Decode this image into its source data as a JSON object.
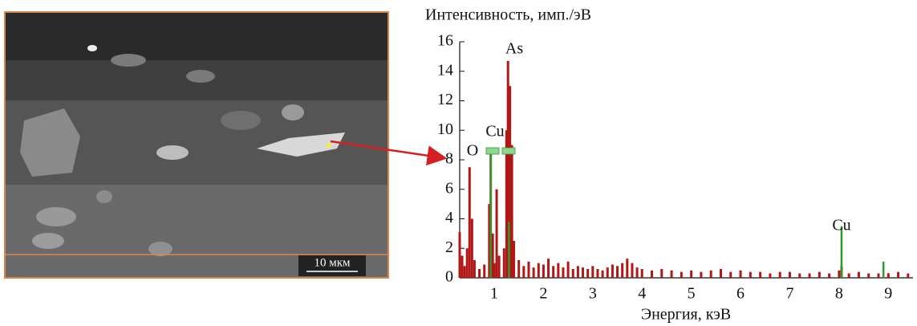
{
  "image": {
    "scale_bar": "10 мкм"
  },
  "chart_data": {
    "type": "stick",
    "y_label": "Интенсивность, имп./эВ",
    "x_label": "Энергия, кэВ",
    "xlim": [
      0.3,
      9.5
    ],
    "xticks": [
      1,
      2,
      3,
      4,
      5,
      6,
      7,
      8,
      9
    ],
    "ylim": [
      0,
      16
    ],
    "yticks": [
      0,
      2,
      4,
      6,
      8,
      10,
      12,
      14,
      16
    ],
    "annotations": [
      "O",
      "Cu",
      "As",
      "Cu"
    ],
    "series": [
      {
        "color": "#b01818",
        "x": [
          0.3,
          0.35,
          0.4,
          0.45,
          0.5,
          0.55,
          0.6,
          0.7,
          0.8,
          0.9,
          0.93,
          0.97,
          1.0,
          1.05,
          1.1,
          1.2,
          1.25,
          1.28,
          1.32,
          1.36,
          1.4,
          1.5,
          1.6,
          1.7,
          1.8,
          1.9,
          2.0,
          2.1,
          2.2,
          2.3,
          2.4,
          2.5,
          2.6,
          2.7,
          2.8,
          2.9,
          3.0,
          3.1,
          3.2,
          3.3,
          3.4,
          3.5,
          3.6,
          3.7,
          3.8,
          3.9,
          4.0,
          4.2,
          4.4,
          4.6,
          4.8,
          5.0,
          5.2,
          5.4,
          5.6,
          5.8,
          6.0,
          6.2,
          6.4,
          6.6,
          6.8,
          7.0,
          7.2,
          7.4,
          7.6,
          7.8,
          8.0,
          8.05,
          8.2,
          8.4,
          8.6,
          8.8,
          9.0,
          9.2,
          9.4
        ],
        "values": [
          3.1,
          1.5,
          0.8,
          2.0,
          7.5,
          4.0,
          1.2,
          0.6,
          0.9,
          5.0,
          8.7,
          3.0,
          1.0,
          6.0,
          1.5,
          2.0,
          10.0,
          14.7,
          13.0,
          9.0,
          2.5,
          1.2,
          0.8,
          1.1,
          0.7,
          1.0,
          0.9,
          1.3,
          0.8,
          1.0,
          0.7,
          1.1,
          0.6,
          0.8,
          0.7,
          0.6,
          0.8,
          0.6,
          0.5,
          0.7,
          0.9,
          0.8,
          1.0,
          1.3,
          1.0,
          0.7,
          0.6,
          0.5,
          0.6,
          0.5,
          0.4,
          0.5,
          0.4,
          0.5,
          0.6,
          0.4,
          0.5,
          0.4,
          0.4,
          0.3,
          0.4,
          0.4,
          0.3,
          0.3,
          0.4,
          0.3,
          0.5,
          0.8,
          0.3,
          0.4,
          0.3,
          0.3,
          0.3,
          0.4,
          0.3
        ]
      },
      {
        "color": "#2e9a2e",
        "x": [
          0.93,
          1.3,
          8.05,
          8.9
        ],
        "values": [
          8.8,
          3.8,
          3.5,
          1.1
        ]
      }
    ]
  }
}
